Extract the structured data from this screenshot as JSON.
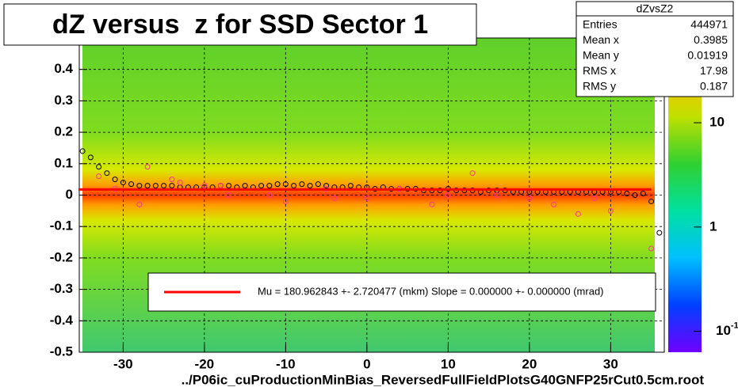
{
  "chart_data": {
    "type": "profile2d",
    "title": "dZ versus  z for SSD Sector 1",
    "x_label": "../P06ic_cuProductionMinBias_ReversedFullFieldPlotsG40GNFP25rCut0.5cm.root",
    "xlim": [
      -35.4,
      36.6
    ],
    "ylim": [
      -0.5,
      0.5
    ],
    "xticks": [
      -30,
      -20,
      -10,
      0,
      10,
      20,
      30
    ],
    "yticks": [
      -0.5,
      -0.4,
      -0.3,
      -0.2,
      -0.1,
      0,
      0.1,
      0.2,
      0.3,
      0.4
    ],
    "grid": true,
    "zlog": true,
    "zlim": [
      0.063,
      65
    ],
    "zticks": [
      {
        "value": 0.1,
        "label": "10^-1"
      },
      1,
      10
    ],
    "series": [
      {
        "name": "profile",
        "color": "#000000",
        "x": [
          -35,
          -34,
          -33,
          -32,
          -31,
          -30,
          -29,
          -28,
          -27,
          -26,
          -25,
          -24,
          -23,
          -22,
          -21,
          -20,
          -19,
          -18,
          -17,
          -16,
          -15,
          -14,
          -13,
          -12,
          -11,
          -10,
          -9,
          -8,
          -7,
          -6,
          -5,
          -4,
          -3,
          -2,
          -1,
          0,
          1,
          2,
          3,
          4,
          5,
          6,
          7,
          8,
          9,
          10,
          11,
          12,
          13,
          14,
          15,
          16,
          17,
          18,
          19,
          20,
          21,
          22,
          23,
          24,
          25,
          26,
          27,
          28,
          29,
          30,
          31,
          32,
          33,
          34,
          35,
          36
        ],
        "values": [
          0.14,
          0.12,
          0.09,
          0.07,
          0.05,
          0.04,
          0.035,
          0.03,
          0.03,
          0.03,
          0.03,
          0.03,
          0.025,
          0.025,
          0.025,
          0.025,
          0.025,
          0.03,
          0.03,
          0.025,
          0.03,
          0.025,
          0.03,
          0.03,
          0.035,
          0.035,
          0.03,
          0.035,
          0.03,
          0.035,
          0.03,
          0.025,
          0.025,
          0.03,
          0.025,
          0.025,
          0.02,
          0.025,
          0.02,
          0.02,
          0.02,
          0.02,
          0.015,
          0.015,
          0.015,
          0.02,
          0.015,
          0.015,
          0.015,
          0.01,
          0.015,
          0.015,
          0.015,
          0.01,
          0.01,
          0.01,
          0.01,
          0.01,
          0.01,
          0.01,
          0.01,
          0.01,
          0.01,
          0.01,
          0.01,
          0.01,
          0.01,
          0.005,
          0,
          0.005,
          -0.02,
          -0.12
        ]
      },
      {
        "name": "sector-profile",
        "color": "#ff3399",
        "x": [
          -33,
          -31,
          -28,
          -27,
          -24,
          -23,
          -20,
          -18,
          -17,
          -12,
          -10,
          -5,
          -4,
          0,
          4,
          8,
          10,
          13,
          16,
          20,
          23,
          26,
          28,
          30,
          35
        ],
        "values": [
          0.06,
          0.02,
          -0.03,
          0.09,
          0.05,
          0.04,
          0.03,
          0.03,
          0,
          0,
          -0.02,
          0.02,
          -0.01,
          -0.01,
          0.02,
          -0.03,
          0,
          0.07,
          0,
          -0.01,
          -0.03,
          -0.06,
          -0.01,
          -0.05,
          -0.17
        ]
      },
      {
        "name": "fit",
        "color": "#ff0000",
        "x": [
          -35.5,
          35
        ],
        "values": [
          0.018,
          0.018
        ]
      }
    ],
    "legend": "Mu = 180.962843 +- 2.720477 (mkm) Slope = 0.000000 +- 0.000000 (mrad)",
    "stats": {
      "title": "dZvsZ2",
      "rows": [
        {
          "label": "Entries",
          "value": 444971
        },
        {
          "label": "Mean x",
          "value": 0.3985
        },
        {
          "label": "Mean y",
          "value": 0.01919
        },
        {
          "label": "RMS x",
          "value": 17.98
        },
        {
          "label": "RMS y",
          "value": 0.187
        }
      ]
    }
  }
}
